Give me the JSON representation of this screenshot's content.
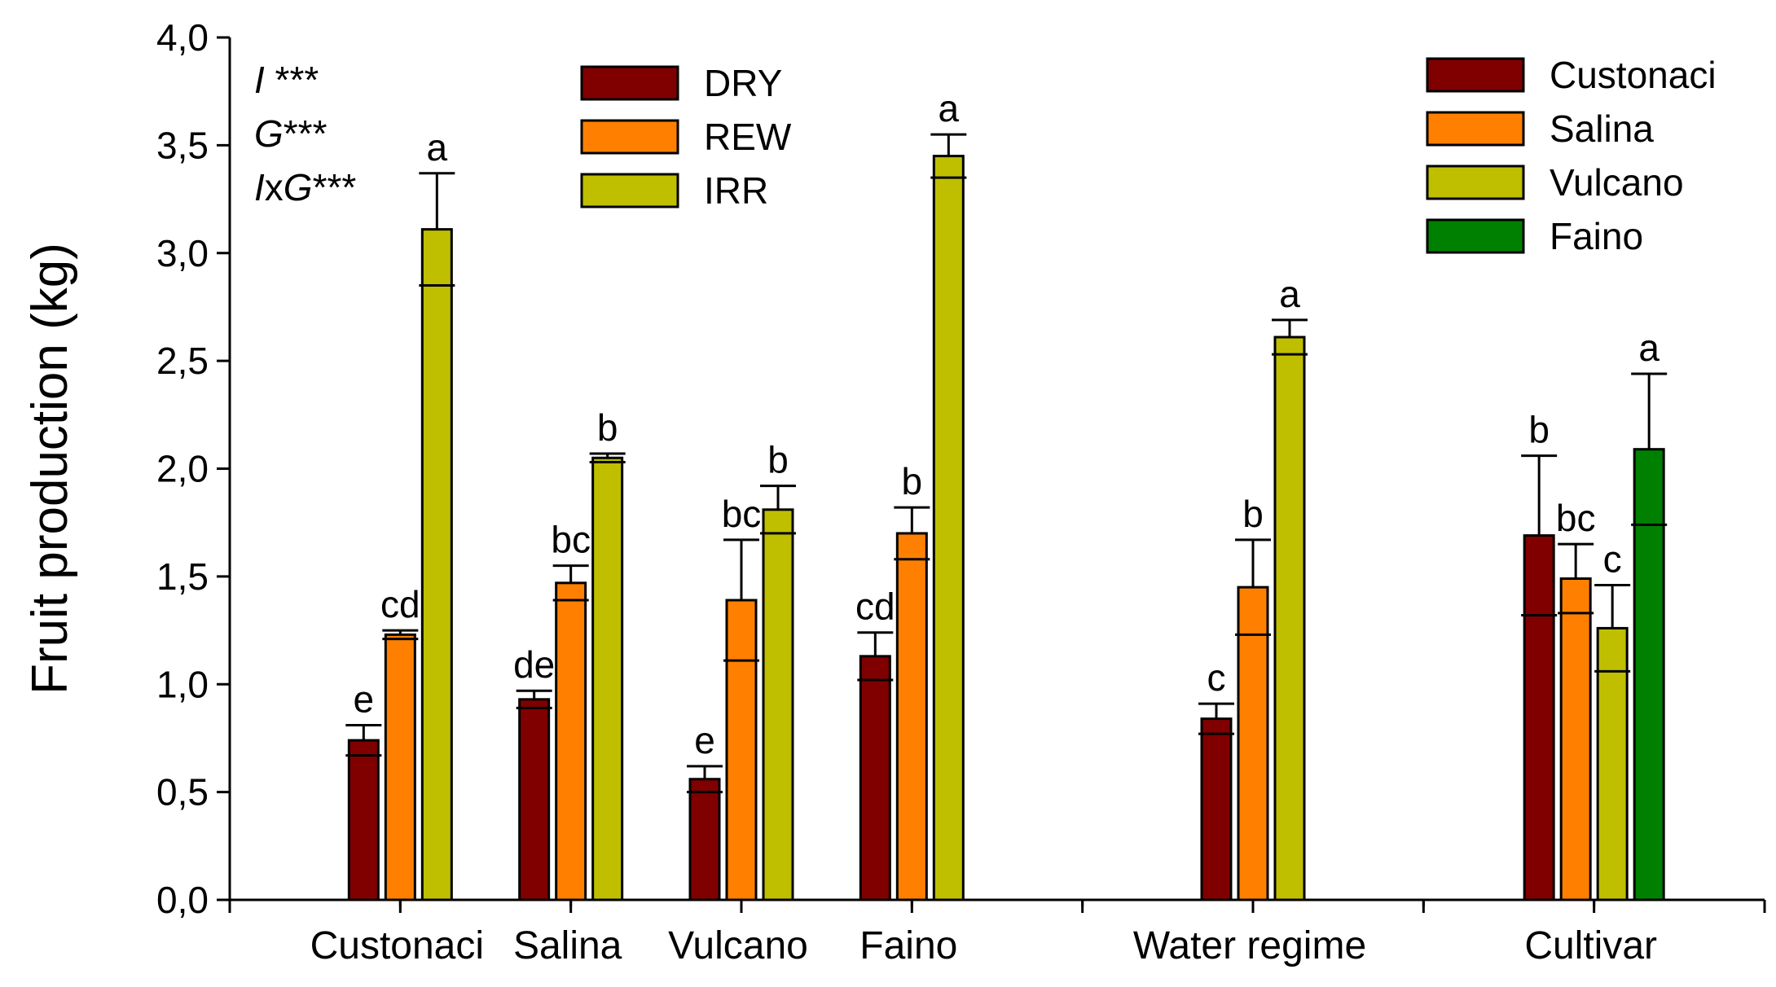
{
  "chart_data": {
    "type": "bar",
    "title": "",
    "xlabel": "",
    "ylabel": "Fruit production (kg)",
    "ylim": [
      0,
      4
    ],
    "yticks": [
      "0,0",
      "0,5",
      "1,0",
      "1,5",
      "2,0",
      "2,5",
      "3,0",
      "3,5",
      "4,0"
    ],
    "ytick_values": [
      0,
      0.5,
      1,
      1.5,
      2,
      2.5,
      3,
      3.5,
      4
    ],
    "annotations": [
      {
        "parts": [
          {
            "t": "I",
            "italic": true
          },
          {
            "t": " ***",
            "italic": false
          }
        ]
      },
      {
        "parts": [
          {
            "t": "G",
            "italic": true
          },
          {
            "t": "***",
            "italic": false
          }
        ]
      },
      {
        "parts": [
          {
            "t": "I",
            "italic": true
          },
          {
            "t": "x",
            "italic": false
          },
          {
            "t": "G",
            "italic": true
          },
          {
            "t": "***",
            "italic": false
          }
        ]
      }
    ],
    "colors": {
      "DRY": "#800000",
      "REW": "#ff8000",
      "IRR": "#bfbf00",
      "Custonaci": "#800000",
      "Salina": "#ff8000",
      "Vulcano": "#bfbf00",
      "Faino": "#008000"
    },
    "legend_water": [
      "DRY",
      "REW",
      "IRR"
    ],
    "legend_cultivar": [
      "Custonaci",
      "Salina",
      "Vulcano",
      "Faino"
    ],
    "groups": [
      {
        "label": "Custonaci",
        "bars": [
          {
            "series": "DRY",
            "value": 0.74,
            "err": 0.07,
            "sig": "e"
          },
          {
            "series": "REW",
            "value": 1.23,
            "err": 0.02,
            "sig": "cd"
          },
          {
            "series": "IRR",
            "value": 3.11,
            "err": 0.26,
            "sig": "a"
          }
        ]
      },
      {
        "label": "Salina",
        "bars": [
          {
            "series": "DRY",
            "value": 0.93,
            "err": 0.04,
            "sig": "de"
          },
          {
            "series": "REW",
            "value": 1.47,
            "err": 0.08,
            "sig": "bc"
          },
          {
            "series": "IRR",
            "value": 2.05,
            "err": 0.02,
            "sig": "b"
          }
        ]
      },
      {
        "label": "Vulcano",
        "bars": [
          {
            "series": "DRY",
            "value": 0.56,
            "err": 0.06,
            "sig": "e"
          },
          {
            "series": "REW",
            "value": 1.39,
            "err": 0.28,
            "sig": "bc"
          },
          {
            "series": "IRR",
            "value": 1.81,
            "err": 0.11,
            "sig": "b"
          }
        ]
      },
      {
        "label": "Faino",
        "bars": [
          {
            "series": "DRY",
            "value": 1.13,
            "err": 0.11,
            "sig": "cd"
          },
          {
            "series": "REW",
            "value": 1.7,
            "err": 0.12,
            "sig": "b"
          },
          {
            "series": "IRR",
            "value": 3.45,
            "err": 0.1,
            "sig": "a"
          }
        ]
      },
      {
        "label": "",
        "bars": []
      },
      {
        "label": "Water regime",
        "bars": [
          {
            "series": "DRY",
            "value": 0.84,
            "err": 0.07,
            "sig": "c"
          },
          {
            "series": "REW",
            "value": 1.45,
            "err": 0.22,
            "sig": "b"
          },
          {
            "series": "IRR",
            "value": 2.61,
            "err": 0.08,
            "sig": "a"
          }
        ]
      },
      {
        "label": "",
        "bars": []
      },
      {
        "label": "Cultivar",
        "bars": [
          {
            "series": "Custonaci",
            "value": 1.69,
            "err": 0.37,
            "sig": "b"
          },
          {
            "series": "Salina",
            "value": 1.49,
            "err": 0.16,
            "sig": "bc"
          },
          {
            "series": "Vulcano",
            "value": 1.26,
            "err": 0.2,
            "sig": "c"
          },
          {
            "series": "Faino",
            "value": 2.09,
            "err": 0.35,
            "sig": "a"
          }
        ]
      }
    ]
  }
}
